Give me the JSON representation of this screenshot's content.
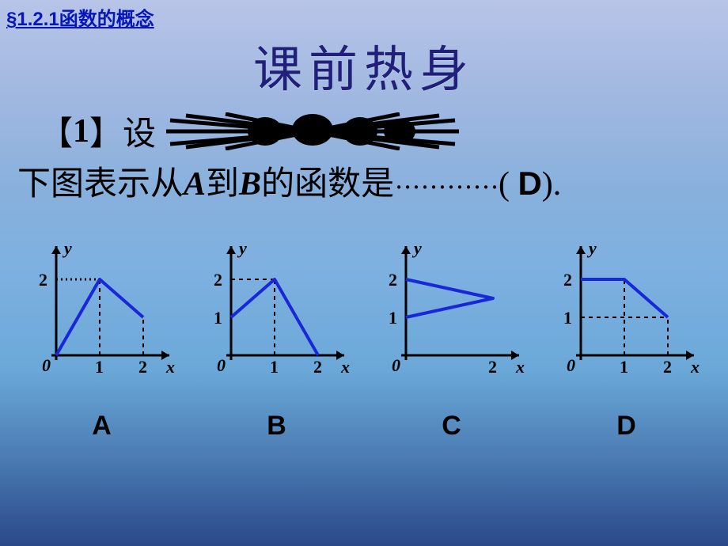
{
  "header": {
    "section": "§1.2.1函数的概念"
  },
  "title": "课前热身",
  "question": {
    "prefix": "【",
    "num": "1",
    "suffix": "】设",
    "line2_a": "下图表示从",
    "line2_A": "A",
    "line2_mid": "到",
    "line2_B": "B",
    "line2_b": "的函数是",
    "dots": "············",
    "paren_open": "( ",
    "answer": "D",
    "paren_close": ")."
  },
  "charts": {
    "axis_color": "#000000",
    "curve_color": "#1828d8",
    "curve_width": 4,
    "axis_width": 3,
    "dash_pattern": "5,5",
    "font_size_axis": 22,
    "items": [
      {
        "label": "A",
        "y_label": "y",
        "x_label": "x",
        "origin_label": "0",
        "y_ticks": [
          {
            "val": 2,
            "label": "2"
          }
        ],
        "x_ticks": [
          {
            "val": 1,
            "label": "1"
          },
          {
            "val": 2,
            "label": "2"
          }
        ],
        "y_tick_dotted": true,
        "curve": [
          [
            0,
            0
          ],
          [
            1,
            2
          ],
          [
            2,
            1
          ]
        ],
        "dashes": [
          [
            [
              1,
              0
            ],
            [
              1,
              2
            ]
          ],
          [
            [
              2,
              0
            ],
            [
              2,
              1
            ]
          ]
        ],
        "dotted_h": [
          [
            0,
            2
          ],
          [
            1,
            2
          ]
        ]
      },
      {
        "label": "B",
        "y_label": "y",
        "x_label": "x",
        "origin_label": "0",
        "y_ticks": [
          {
            "val": 1,
            "label": "1"
          },
          {
            "val": 2,
            "label": "2"
          }
        ],
        "x_ticks": [
          {
            "val": 1,
            "label": "1"
          },
          {
            "val": 2,
            "label": "2"
          }
        ],
        "curve": [
          [
            0,
            1
          ],
          [
            1,
            2
          ],
          [
            2,
            0
          ]
        ],
        "dashes": [
          [
            [
              0,
              2
            ],
            [
              1,
              2
            ]
          ],
          [
            [
              1,
              0
            ],
            [
              1,
              2
            ]
          ]
        ]
      },
      {
        "label": "C",
        "y_label": "y",
        "x_label": "x",
        "origin_label": "0",
        "y_ticks": [
          {
            "val": 1,
            "label": "1"
          },
          {
            "val": 2,
            "label": "2"
          }
        ],
        "x_ticks": [
          {
            "val": 2,
            "label": "2"
          }
        ],
        "curve": [
          [
            0,
            2
          ],
          [
            2,
            1.5
          ],
          [
            0,
            1
          ]
        ],
        "dashes": []
      },
      {
        "label": "D",
        "y_label": "y",
        "x_label": "x",
        "origin_label": "0",
        "y_ticks": [
          {
            "val": 1,
            "label": "1"
          },
          {
            "val": 2,
            "label": "2"
          }
        ],
        "x_ticks": [
          {
            "val": 1,
            "label": "1"
          },
          {
            "val": 2,
            "label": "2"
          }
        ],
        "curve": [
          [
            0,
            2
          ],
          [
            1,
            2
          ],
          [
            2,
            1
          ]
        ],
        "dashes": [
          [
            [
              0,
              1
            ],
            [
              2,
              1
            ]
          ],
          [
            [
              1,
              0
            ],
            [
              1,
              2
            ]
          ],
          [
            [
              2,
              0
            ],
            [
              2,
              1
            ]
          ]
        ]
      }
    ]
  }
}
